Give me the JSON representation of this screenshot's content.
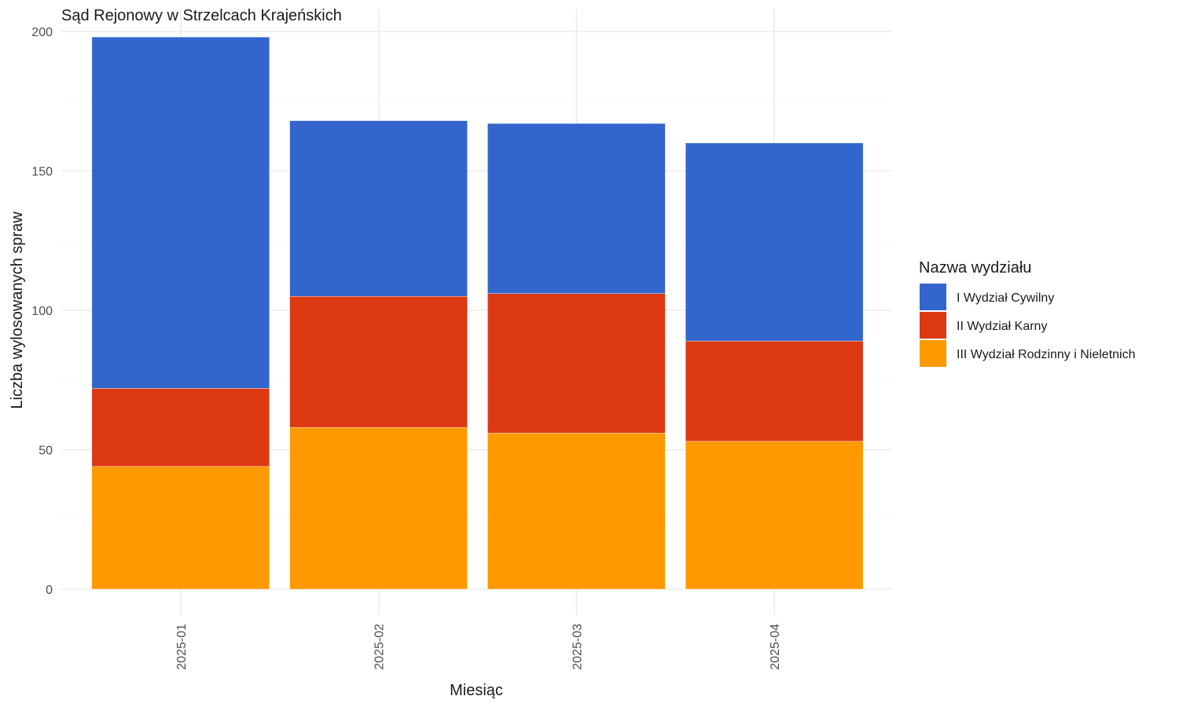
{
  "chart_data": {
    "type": "bar",
    "stacked": true,
    "title": "Sąd Rejonowy w Strzelcach Krajeńskich",
    "xlabel": "Miesiąc",
    "ylabel": "Liczba wylosowanych spraw",
    "categories": [
      "2025-01",
      "2025-02",
      "2025-03",
      "2025-04"
    ],
    "ylim": [
      0,
      200
    ],
    "yticks": [
      0,
      50,
      100,
      150,
      200
    ],
    "grid": true,
    "legend": {
      "title": "Nazwa wydziału",
      "placement": "right"
    },
    "series": [
      {
        "name": "I Wydział Cywilny",
        "color": "#3366CC",
        "values": [
          126,
          63,
          61,
          71
        ]
      },
      {
        "name": "II Wydział Karny",
        "color": "#DC3912",
        "values": [
          28,
          47,
          50,
          36
        ]
      },
      {
        "name": "III Wydział Rodzinny i Nieletnich",
        "color": "#FF9900",
        "values": [
          44,
          58,
          56,
          53
        ]
      }
    ],
    "stack_order_bottom_to_top": [
      "III Wydział Rodzinny i Nieletnich",
      "II Wydział Karny",
      "I Wydział Cywilny"
    ]
  }
}
